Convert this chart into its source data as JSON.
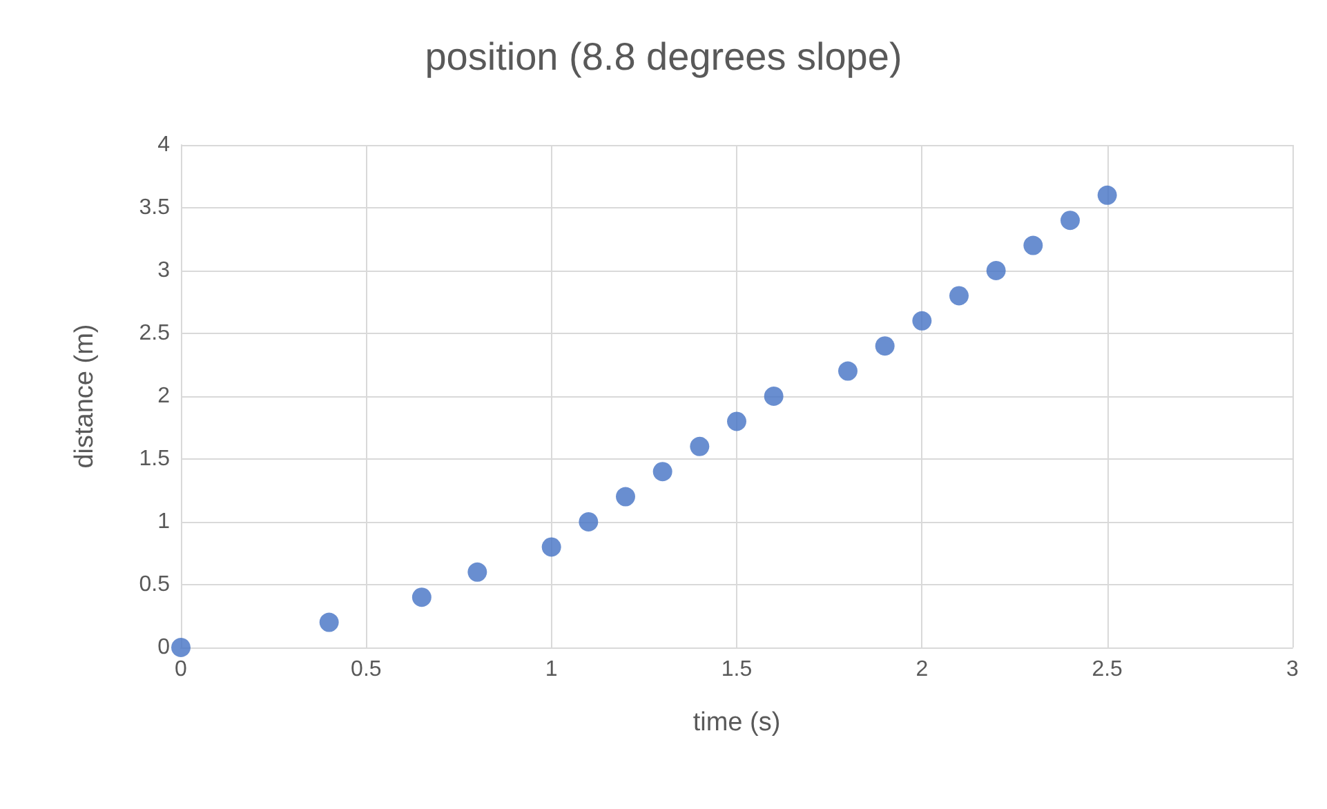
{
  "chart_data": {
    "type": "scatter",
    "title": "position (8.8 degrees slope)",
    "xlabel": "time (s)",
    "ylabel": "distance (m)",
    "x": [
      0,
      0.4,
      0.65,
      0.8,
      1.0,
      1.1,
      1.2,
      1.3,
      1.4,
      1.5,
      1.6,
      1.8,
      1.9,
      2.0,
      2.1,
      2.2,
      2.3,
      2.4,
      2.5
    ],
    "values": [
      0,
      0.2,
      0.4,
      0.6,
      0.8,
      1.0,
      1.2,
      1.4,
      1.6,
      1.8,
      2.0,
      2.2,
      2.4,
      2.6,
      2.8,
      3.0,
      3.2,
      3.4,
      3.6
    ],
    "color": "#4472c4",
    "marker": "circle",
    "xlim": [
      0,
      3
    ],
    "xticks": [
      0,
      0.5,
      1,
      1.5,
      2,
      2.5,
      3
    ],
    "ylim": [
      0,
      4
    ],
    "yticks": [
      0,
      0.5,
      1,
      1.5,
      2,
      2.5,
      3,
      3.5,
      4
    ],
    "grid": true
  }
}
